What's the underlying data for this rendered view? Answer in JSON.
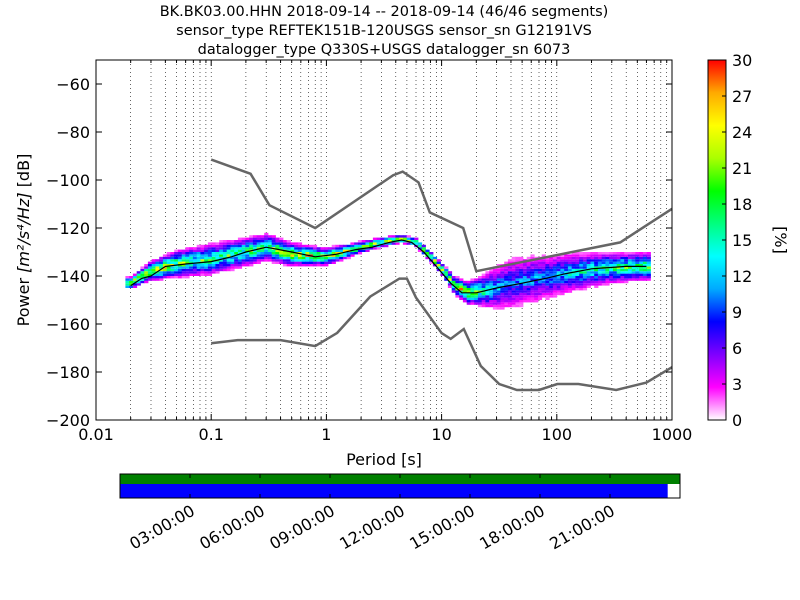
{
  "chart_data": [
    {
      "type": "heatmap",
      "title_lines": [
        "BK.BK03.00.HHN   2018-09-14 -- 2018-09-14  (46/46 segments)",
        "sensor_type REFTEK151B-120USGS sensor_sn G12191VS",
        "datalogger_type Q330S+USGS datalogger_sn 6073"
      ],
      "xlabel": "Period [s]",
      "ylabel_prefix": "Power ",
      "ylabel_units": "[m²/s⁴/Hz]",
      "ylabel_suffix": " [dB]",
      "xscale": "log",
      "xlim": [
        0.01,
        1000
      ],
      "ylim": [
        -200,
        -50
      ],
      "x_ticks": [
        {
          "value": 0.01,
          "label": "0.01"
        },
        {
          "value": 0.1,
          "label": "0.1"
        },
        {
          "value": 1,
          "label": "1"
        },
        {
          "value": 10,
          "label": "10"
        },
        {
          "value": 100,
          "label": "100"
        },
        {
          "value": 1000,
          "label": "1000"
        }
      ],
      "y_ticks": [
        {
          "value": -60,
          "label": "−60"
        },
        {
          "value": -80,
          "label": "−80"
        },
        {
          "value": -100,
          "label": "−100"
        },
        {
          "value": -120,
          "label": "−120"
        },
        {
          "value": -140,
          "label": "−140"
        },
        {
          "value": -160,
          "label": "−160"
        },
        {
          "value": -180,
          "label": "−180"
        },
        {
          "value": -200,
          "label": "−200"
        }
      ],
      "grid": "dotted, vertical at every log minor period tick",
      "noise_models": [
        {
          "id": "high-noise-model",
          "color": "#666666",
          "points": [
            [
              0.1,
              -91.5
            ],
            [
              0.22,
              -97.4
            ],
            [
              0.32,
              -110.5
            ],
            [
              0.8,
              -120
            ],
            [
              3.8,
              -98
            ],
            [
              4.6,
              -96.5
            ],
            [
              6.3,
              -101
            ],
            [
              7.9,
              -113.5
            ],
            [
              15.4,
              -120
            ],
            [
              20,
              -138
            ],
            [
              354.8,
              -126
            ],
            [
              1000,
              -112
            ]
          ]
        },
        {
          "id": "low-noise-model",
          "color": "#666666",
          "points": [
            [
              0.1,
              -168
            ],
            [
              0.17,
              -166.7
            ],
            [
              0.4,
              -166.7
            ],
            [
              0.8,
              -169.2
            ],
            [
              1.24,
              -163.7
            ],
            [
              2.4,
              -148.6
            ],
            [
              4.3,
              -141.1
            ],
            [
              5,
              -141.1
            ],
            [
              6,
              -149
            ],
            [
              10,
              -163.8
            ],
            [
              12,
              -166.2
            ],
            [
              15.6,
              -162.1
            ],
            [
              21.9,
              -177.5
            ],
            [
              31.6,
              -185
            ],
            [
              45,
              -187.5
            ],
            [
              70,
              -187.5
            ],
            [
              101,
              -185
            ],
            [
              154,
              -185
            ],
            [
              328,
              -187.5
            ],
            [
              600,
              -184.4
            ],
            [
              1000,
              -178
            ]
          ]
        }
      ],
      "median_curve": {
        "color": "#000000",
        "points": [
          [
            0.02,
            -144
          ],
          [
            0.025,
            -141
          ],
          [
            0.03,
            -140
          ],
          [
            0.04,
            -136
          ],
          [
            0.06,
            -135
          ],
          [
            0.1,
            -134
          ],
          [
            0.15,
            -132
          ],
          [
            0.2,
            -130
          ],
          [
            0.3,
            -128
          ],
          [
            0.5,
            -130
          ],
          [
            0.8,
            -132
          ],
          [
            1.2,
            -131
          ],
          [
            1.8,
            -129
          ],
          [
            2.5,
            -128
          ],
          [
            3.5,
            -126
          ],
          [
            4.5,
            -125
          ],
          [
            5.5,
            -126
          ],
          [
            7,
            -130
          ],
          [
            9,
            -136
          ],
          [
            12,
            -143
          ],
          [
            15,
            -147
          ],
          [
            20,
            -147
          ],
          [
            30,
            -145
          ],
          [
            50,
            -143
          ],
          [
            80,
            -141
          ],
          [
            120,
            -139
          ],
          [
            200,
            -137
          ],
          [
            400,
            -136
          ],
          [
            600,
            -136
          ]
        ]
      },
      "psd_density": {
        "period_range": [
          0.018,
          650
        ],
        "center_db": [
          [
            0.02,
            -143
          ],
          [
            0.025,
            -140
          ],
          [
            0.03,
            -138
          ],
          [
            0.05,
            -135
          ],
          [
            0.1,
            -133
          ],
          [
            0.2,
            -130
          ],
          [
            0.3,
            -128
          ],
          [
            0.5,
            -131
          ],
          [
            1,
            -132
          ],
          [
            2,
            -128
          ],
          [
            3,
            -126
          ],
          [
            4.5,
            -124.5
          ],
          [
            6,
            -126
          ],
          [
            8,
            -132
          ],
          [
            10,
            -137
          ],
          [
            13,
            -144
          ],
          [
            17,
            -147
          ],
          [
            25,
            -146
          ],
          [
            40,
            -143
          ],
          [
            70,
            -141
          ],
          [
            120,
            -139
          ],
          [
            250,
            -137
          ],
          [
            600,
            -136
          ]
        ],
        "half_width_db": [
          [
            0.02,
            3
          ],
          [
            0.03,
            5
          ],
          [
            0.05,
            7
          ],
          [
            0.1,
            8
          ],
          [
            0.3,
            7
          ],
          [
            0.8,
            5
          ],
          [
            2,
            3
          ],
          [
            5,
            2
          ],
          [
            10,
            3
          ],
          [
            20,
            7
          ],
          [
            40,
            14
          ],
          [
            100,
            11
          ],
          [
            300,
            8
          ],
          [
            600,
            7
          ]
        ],
        "peak_percent": 30
      },
      "colorbar": {
        "label": "[%]",
        "min": 0,
        "max": 30,
        "ticks": [
          {
            "value": 0,
            "label": "0"
          },
          {
            "value": 3,
            "label": "3"
          },
          {
            "value": 6,
            "label": "6"
          },
          {
            "value": 9,
            "label": "9"
          },
          {
            "value": 12,
            "label": "12"
          },
          {
            "value": 15,
            "label": "15"
          },
          {
            "value": 18,
            "label": "18"
          },
          {
            "value": 21,
            "label": "21"
          },
          {
            "value": 24,
            "label": "24"
          },
          {
            "value": 27,
            "label": "27"
          },
          {
            "value": 30,
            "label": "30"
          }
        ],
        "colormap": "pqlx",
        "stops": [
          "#ffffff",
          "#ff00ff",
          "#7f00ff",
          "#0000ff",
          "#00aaff",
          "#00ffff",
          "#00ff7f",
          "#00ff00",
          "#aaff00",
          "#ffff00",
          "#ffaa00",
          "#ff0000"
        ]
      }
    },
    {
      "type": "timeline",
      "series": [
        {
          "name": "",
          "color": "#008000",
          "coverage_fraction": 1.0
        },
        {
          "name": "",
          "color": "#0000ff",
          "coverage_fraction": 0.978
        }
      ],
      "tick_labels": [
        "03:00:00",
        "06:00:00",
        "09:00:00",
        "12:00:00",
        "15:00:00",
        "18:00:00",
        "21:00:00"
      ],
      "tick_fractions": [
        0.125,
        0.25,
        0.375,
        0.5,
        0.625,
        0.75,
        0.875
      ]
    }
  ]
}
